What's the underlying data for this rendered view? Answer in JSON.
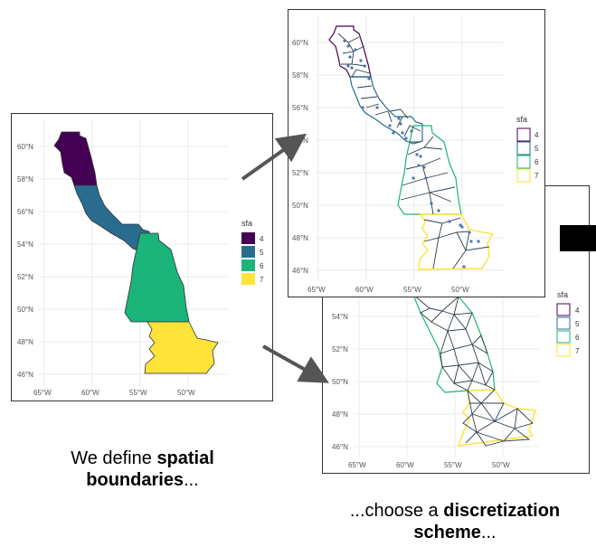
{
  "colors": {
    "sfa4": "#440154",
    "sfa5": "#2A6C8E",
    "sfa6": "#1BB47A",
    "sfa7": "#FDE33A",
    "arrow": "#555555",
    "mesh": "#2F3E4E",
    "points": "#4C74B0"
  },
  "legend": {
    "title": "sfa",
    "items": [
      "4",
      "5",
      "6",
      "7"
    ]
  },
  "axes": {
    "lat_labels": [
      "60°N",
      "58°N",
      "56°N",
      "54°N",
      "52°N",
      "50°N",
      "48°N",
      "46°N"
    ],
    "lon_labels": [
      "65°W",
      "60°W",
      "55°W",
      "50°W"
    ],
    "mesh_lat_labels": [
      "54°N",
      "52°N",
      "50°N",
      "48°N",
      "46°N"
    ]
  },
  "captions": {
    "left_prefix": "We define ",
    "left_bold1": "spatial",
    "left_bold2": "boundaries",
    "left_suffix": "...",
    "right_prefix": "...choose a ",
    "right_bold1": "discretization",
    "right_bold2": "scheme",
    "right_suffix": "..."
  }
}
